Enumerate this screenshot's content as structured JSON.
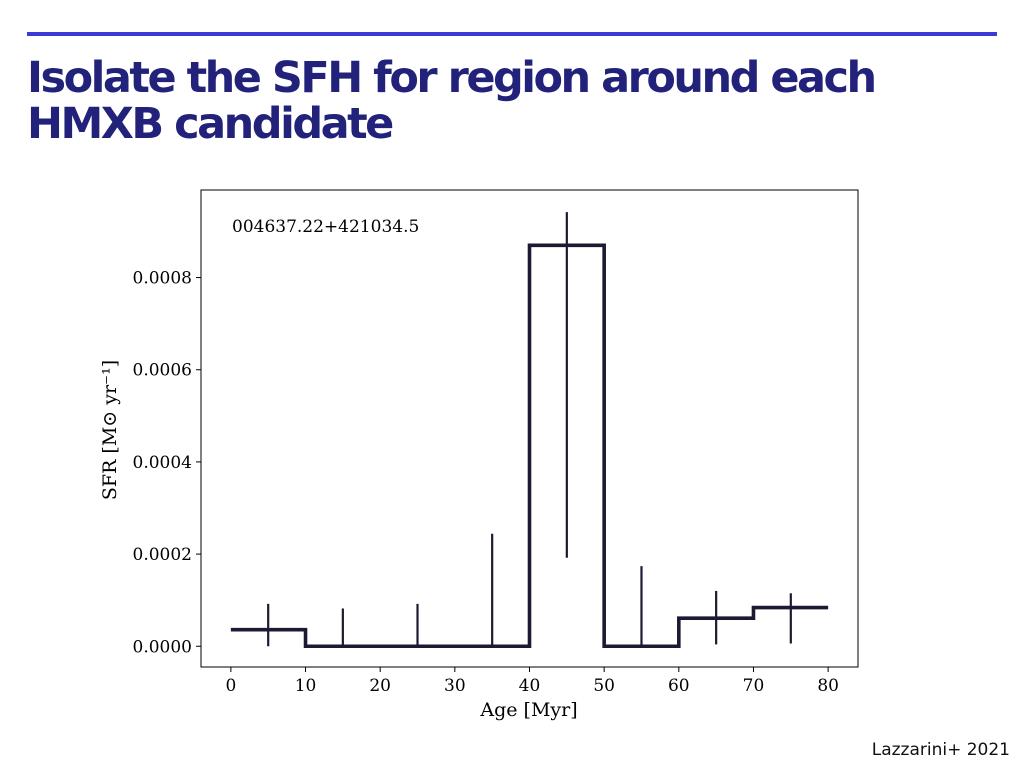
{
  "slide": {
    "title_lines": [
      "Isolate the SFH for region around each",
      "HMXB candidate"
    ],
    "citation": "Lazzarini+ 2021",
    "accent_color": "#3b3bd4",
    "title_color": "#22227a"
  },
  "chart_data": {
    "type": "line",
    "style": "step",
    "annotation": "004637.22+421034.5",
    "xlabel": "Age [Myr]",
    "ylabel": "SFR [M⊙ yr⁻¹]",
    "xlim": [
      -4,
      84
    ],
    "ylim": [
      -4.5e-05,
      0.00099
    ],
    "x_ticks": [
      0,
      10,
      20,
      30,
      40,
      50,
      60,
      70,
      80
    ],
    "x_tick_labels": [
      "0",
      "10",
      "20",
      "30",
      "40",
      "50",
      "60",
      "70",
      "80"
    ],
    "y_ticks": [
      0,
      0.0002,
      0.0004,
      0.0006,
      0.0008
    ],
    "y_tick_labels": [
      "0.0000",
      "0.0002",
      "0.0004",
      "0.0006",
      "0.0008"
    ],
    "grid": false,
    "line_color": "#1c1a33",
    "series": [
      {
        "bins": [
          {
            "x0": 0,
            "x1": 10,
            "value": 3.6e-05,
            "err_low": 0.0,
            "err_high": 9.2e-05
          },
          {
            "x0": 10,
            "x1": 20,
            "value": 0.0,
            "err_low": 0.0,
            "err_high": 8.2e-05
          },
          {
            "x0": 20,
            "x1": 30,
            "value": 0.0,
            "err_low": 0.0,
            "err_high": 9.2e-05
          },
          {
            "x0": 30,
            "x1": 40,
            "value": 0.0,
            "err_low": 0.0,
            "err_high": 0.000244
          },
          {
            "x0": 40,
            "x1": 50,
            "value": 0.00087,
            "err_low": 0.000192,
            "err_high": 0.000942
          },
          {
            "x0": 50,
            "x1": 60,
            "value": 0.0,
            "err_low": 0.0,
            "err_high": 0.000174
          },
          {
            "x0": 60,
            "x1": 70,
            "value": 6.1e-05,
            "err_low": 4e-06,
            "err_high": 0.00012
          },
          {
            "x0": 70,
            "x1": 80,
            "value": 8.4e-05,
            "err_low": 6e-06,
            "err_high": 0.000115
          }
        ]
      }
    ]
  }
}
